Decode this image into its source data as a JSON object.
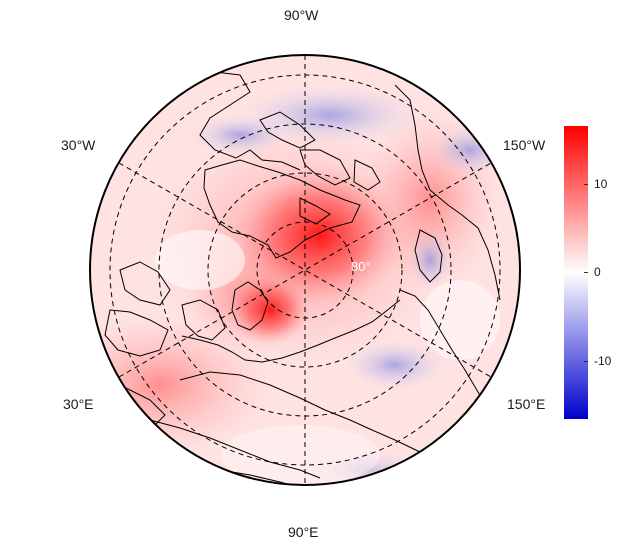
{
  "map": {
    "projection": "north-polar-stereographic",
    "longitude_labels": {
      "top": "90°W",
      "left_upper": "30°W",
      "right_upper": "150°W",
      "left_lower": "30°E",
      "right_lower": "150°E",
      "bottom": "90°E"
    },
    "latitude_label": "80°",
    "colors": {
      "positive_max": "#ff0000",
      "neutral": "#ffffff",
      "negative_max": "#0000cc",
      "graticule": "#000000",
      "coastline": "#000000"
    }
  },
  "colorbar": {
    "min": -16,
    "max": 16,
    "tick_labels": [
      "10",
      "0",
      "-10"
    ],
    "tick_values": [
      10,
      0,
      -10
    ]
  }
}
